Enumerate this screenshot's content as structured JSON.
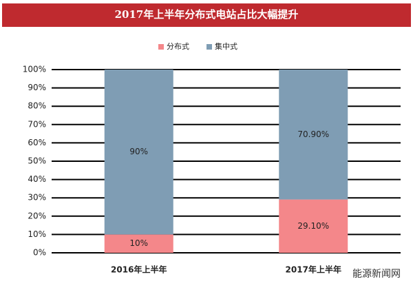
{
  "chart_data": {
    "type": "bar",
    "stacked": true,
    "title": "2017年上半年分布式电站占比大幅提升",
    "categories": [
      "2016年上半年",
      "2017年上半年"
    ],
    "series": [
      {
        "name": "分布式",
        "color": "#f4878a",
        "values": [
          10,
          29.1
        ],
        "value_labels": [
          "10%",
          "29.10%"
        ]
      },
      {
        "name": "集中式",
        "color": "#7f9db4",
        "values": [
          90,
          70.9
        ],
        "value_labels": [
          "90%",
          "70.90%"
        ]
      }
    ],
    "ylim": [
      0,
      100
    ],
    "yticks": [
      {
        "value": 0,
        "label": "0%"
      },
      {
        "value": 10,
        "label": "10%"
      },
      {
        "value": 20,
        "label": "20%"
      },
      {
        "value": 30,
        "label": "30%"
      },
      {
        "value": 40,
        "label": "40%"
      },
      {
        "value": 50,
        "label": "50%"
      },
      {
        "value": 60,
        "label": "60%"
      },
      {
        "value": 70,
        "label": "70%"
      },
      {
        "value": 80,
        "label": "80%"
      },
      {
        "value": 90,
        "label": "90%"
      },
      {
        "value": 100,
        "label": "100%"
      }
    ],
    "grid": true,
    "legend": "top",
    "watermark": "能源新闻网"
  }
}
